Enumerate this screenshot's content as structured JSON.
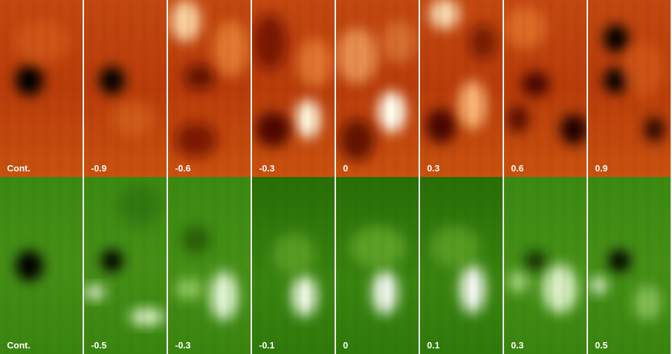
{
  "panels": {
    "top": [
      "Cont.",
      "-0.9",
      "-0.6",
      "-0.3",
      "0",
      "0.3",
      "0.6",
      "0.9"
    ],
    "bottom": [
      "Cont.",
      "-0.5",
      "-0.3",
      "-0.1",
      "0",
      "0.1",
      "0.3",
      "0.5"
    ]
  }
}
